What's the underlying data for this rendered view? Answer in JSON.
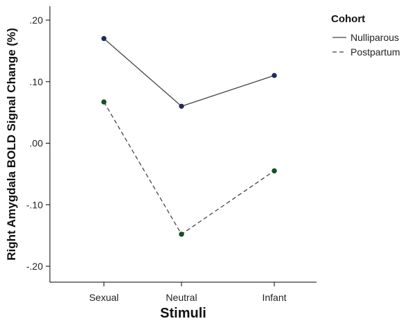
{
  "chart_data": {
    "type": "line",
    "xlabel": "Stimuli",
    "ylabel": "Right Amygdala BOLD Signal Change (%)",
    "categories": [
      "Sexual",
      "Neutral",
      "Infant"
    ],
    "y_ticks": [
      0.2,
      0.1,
      0.0,
      -0.1,
      -0.2
    ],
    "y_tick_labels": [
      ".20",
      ".10",
      ".00",
      "-.10",
      "-.20"
    ],
    "ylim": [
      -0.225,
      0.225
    ],
    "grid": false,
    "legend": {
      "title": "Cohort",
      "placement": "outside-right-top"
    },
    "series": [
      {
        "name": "Nulliparous",
        "values": [
          0.17,
          0.06,
          0.11
        ],
        "line_style": "solid",
        "line_color": "#444444",
        "marker_color": "#1c2a6e"
      },
      {
        "name": "Postpartum",
        "values": [
          0.067,
          -0.148,
          -0.045
        ],
        "line_style": "dashed",
        "line_color": "#444444",
        "marker_color": "#0d5a1c"
      }
    ]
  }
}
